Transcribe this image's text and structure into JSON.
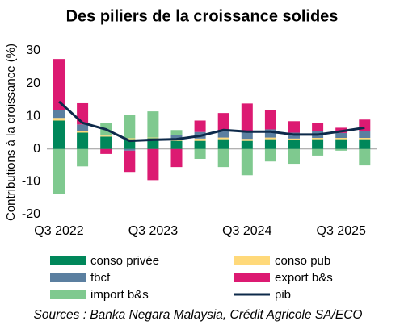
{
  "chart_data": {
    "type": "bar",
    "stacked": true,
    "title": "Des piliers de la croissance solides",
    "y_label": "Contributions à la croissance (%)",
    "source": "Sources : Banka Negara Malaysia, Crédit Agricole SA/ECO",
    "categories": [
      "Q3 2022",
      null,
      null,
      null,
      "Q3 2023",
      null,
      null,
      null,
      "Q3 2024",
      null,
      null,
      null,
      "Q3 2025",
      null
    ],
    "ylim": [
      -20,
      30
    ],
    "yticks": [
      -20,
      -10,
      0,
      10,
      20,
      30
    ],
    "grid": false,
    "series": [
      {
        "name": "conso privée",
        "color": "#00875a",
        "values": [
          8.7,
          5,
          3.8,
          3,
          3.3,
          2.5,
          2.5,
          3,
          2.5,
          3,
          2.8,
          3,
          3,
          3
        ]
      },
      {
        "name": "conso pub",
        "color": "#ffd97a",
        "values": [
          0.8,
          0.5,
          0.3,
          0.3,
          0.2,
          0.3,
          0.7,
          0.5,
          0.6,
          0.5,
          0.4,
          0.4,
          0.4,
          0.4
        ]
      },
      {
        "name": "fbcf",
        "color": "#5b7fa0",
        "values": [
          2.5,
          2,
          0,
          -0.5,
          0,
          1.5,
          2,
          2,
          2,
          2.5,
          1.8,
          2.2,
          1.5,
          2.2
        ]
      },
      {
        "name": "export b&s",
        "color": "#dc1a72",
        "values": [
          15.5,
          6.5,
          -1.5,
          -6.5,
          -9.5,
          -5.5,
          3.5,
          5.5,
          8.8,
          6,
          3.5,
          2.4,
          1.6,
          3.4
        ]
      },
      {
        "name": "import b&s",
        "color": "#7fc98f",
        "values": [
          -13.8,
          -5.3,
          3.9,
          7,
          8,
          1.5,
          -3,
          -5.5,
          -8,
          -3.8,
          -4.5,
          -2,
          -0.5,
          -5
        ]
      },
      {
        "name": "pib",
        "type": "line",
        "color": "#0d2a4a",
        "values": [
          14.5,
          8,
          6,
          2.5,
          2.8,
          3,
          4,
          5.8,
          5.3,
          5.3,
          4.4,
          4.4,
          5.4,
          6.5
        ]
      }
    ]
  }
}
